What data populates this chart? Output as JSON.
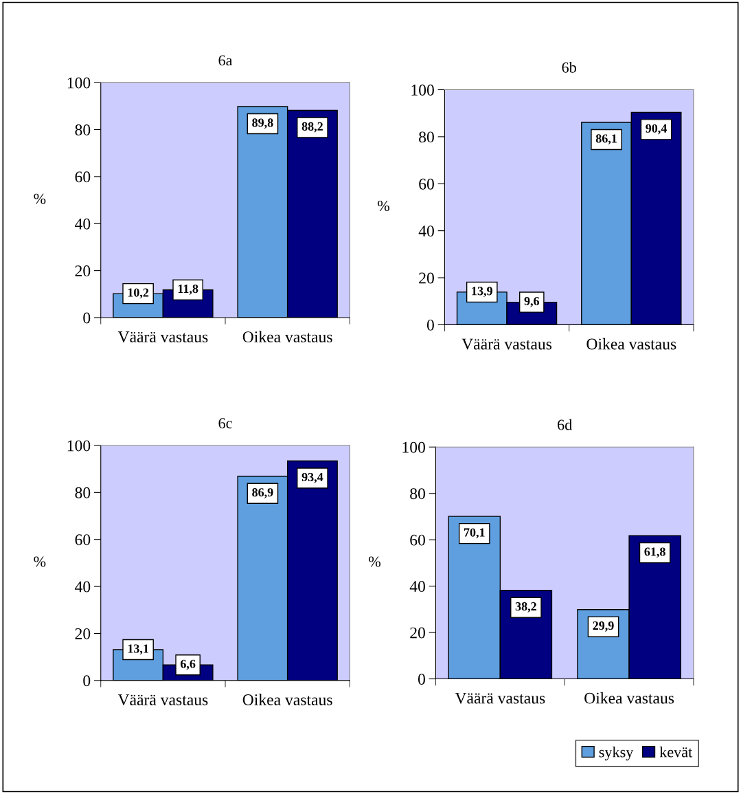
{
  "chart_data": [
    {
      "type": "bar",
      "title": "6a",
      "ylabel": "%",
      "categories": [
        "Väärä vastaus",
        "Oikea vastaus"
      ],
      "series": [
        {
          "color": "#5f9fdf",
          "values": [
            10.2,
            89.8
          ],
          "value_labels": [
            "10,2",
            "89,8"
          ]
        },
        {
          "color": "#000080",
          "values": [
            11.8,
            88.2
          ],
          "value_labels": [
            "11,8",
            "88,2"
          ]
        }
      ],
      "ylim": [
        0,
        100
      ],
      "yticks": [
        0,
        20,
        40,
        60,
        80,
        100
      ],
      "grid": false,
      "legend": false
    },
    {
      "type": "bar",
      "title": "6b",
      "ylabel": "%",
      "categories": [
        "Väärä vastaus",
        "Oikea vastaus"
      ],
      "series": [
        {
          "color": "#5f9fdf",
          "values": [
            13.9,
            86.1
          ],
          "value_labels": [
            "13,9",
            "86,1"
          ]
        },
        {
          "color": "#000080",
          "values": [
            9.6,
            90.4
          ],
          "value_labels": [
            "9,6",
            "90,4"
          ]
        }
      ],
      "ylim": [
        0,
        100
      ],
      "yticks": [
        0,
        20,
        40,
        60,
        80,
        100
      ],
      "grid": false,
      "legend": false
    },
    {
      "type": "bar",
      "title": "6c",
      "ylabel": "%",
      "categories": [
        "Väärä vastaus",
        "Oikea vastaus"
      ],
      "series": [
        {
          "color": "#5f9fdf",
          "values": [
            13.1,
            86.9
          ],
          "value_labels": [
            "13,1",
            "86,9"
          ]
        },
        {
          "color": "#000080",
          "values": [
            6.6,
            93.4
          ],
          "value_labels": [
            "6,6",
            "93,4"
          ]
        }
      ],
      "ylim": [
        0,
        100
      ],
      "yticks": [
        0,
        20,
        40,
        60,
        80,
        100
      ],
      "grid": false,
      "legend": false
    },
    {
      "type": "bar",
      "title": "6d",
      "ylabel": "%",
      "categories": [
        "Väärä vastaus",
        "Oikea vastaus"
      ],
      "series": [
        {
          "name": "syksy",
          "color": "#5f9fdf",
          "values": [
            70.1,
            29.9
          ],
          "value_labels": [
            "70,1",
            "29,9"
          ]
        },
        {
          "name": "kevät",
          "color": "#000080",
          "values": [
            38.2,
            61.8
          ],
          "value_labels": [
            "38,2",
            "61,8"
          ]
        }
      ],
      "ylim": [
        0,
        100
      ],
      "yticks": [
        0,
        20,
        40,
        60,
        80,
        100
      ],
      "grid": false,
      "legend": "bottom right"
    }
  ]
}
